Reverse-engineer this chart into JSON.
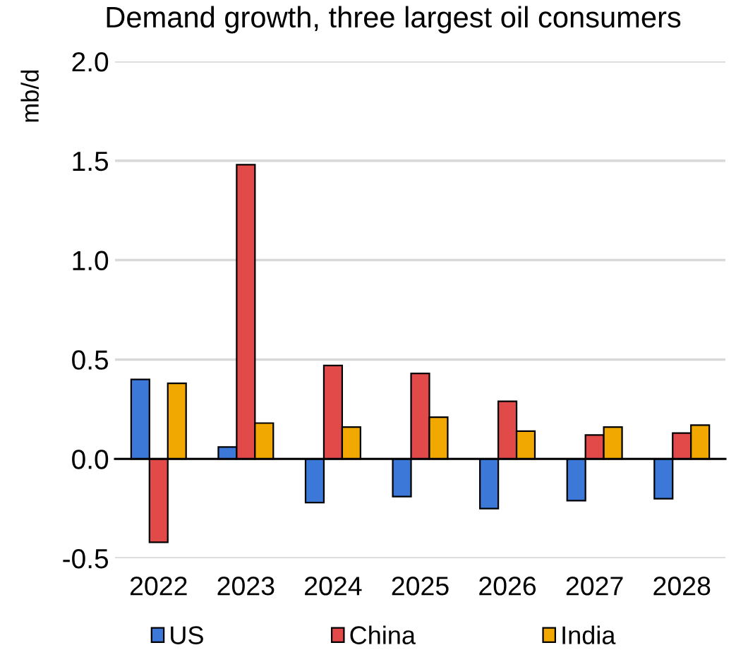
{
  "chart_data": {
    "type": "bar",
    "title": "Demand growth, three largest oil consumers",
    "ylabel": "mb/d",
    "categories": [
      "2022",
      "2023",
      "2024",
      "2025",
      "2026",
      "2027",
      "2028"
    ],
    "series": [
      {
        "name": "US",
        "color": "#3c78d8",
        "values": [
          0.4,
          0.06,
          -0.22,
          -0.19,
          -0.25,
          -0.21,
          -0.2
        ]
      },
      {
        "name": "China",
        "color": "#e24a4a",
        "values": [
          -0.42,
          1.48,
          0.47,
          0.43,
          0.29,
          0.12,
          0.13
        ]
      },
      {
        "name": "India",
        "color": "#f1a800",
        "values": [
          0.38,
          0.18,
          0.16,
          0.21,
          0.14,
          0.16,
          0.17
        ]
      }
    ],
    "ylim": [
      -0.5,
      2.0
    ],
    "yticks": [
      {
        "value": -0.5,
        "label": "-0.5"
      },
      {
        "value": 0,
        "label": "0.0"
      },
      {
        "value": 0.5,
        "label": "0.5"
      },
      {
        "value": 1,
        "label": "1.0"
      },
      {
        "value": 1.5,
        "label": "1.5"
      },
      {
        "value": 2,
        "label": "2.0"
      }
    ],
    "grid": "y",
    "legend": "bottom"
  }
}
